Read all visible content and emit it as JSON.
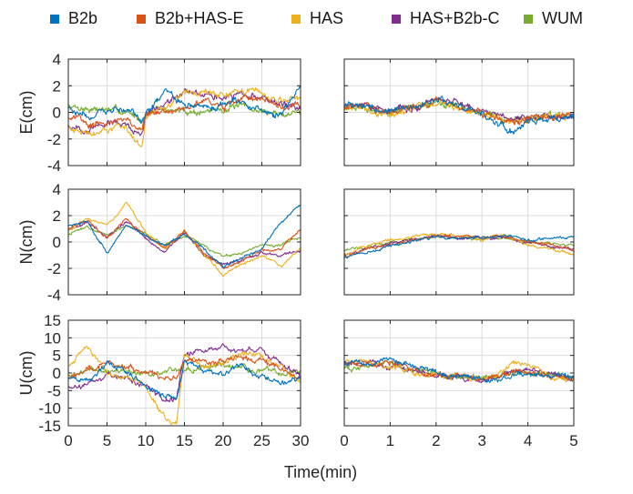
{
  "legend": [
    {
      "name": "B2b",
      "color": "#0072BD"
    },
    {
      "name": "B2b+HAS-E",
      "color": "#D95319"
    },
    {
      "name": "HAS",
      "color": "#EDB120"
    },
    {
      "name": "HAS+B2b-C",
      "color": "#7E2F8E"
    },
    {
      "name": "WUM",
      "color": "#77AC30"
    }
  ],
  "x_axis_label": "Time(min)",
  "chart_data": [
    {
      "type": "line",
      "panel": "E-left",
      "ylabel": "E(cm)",
      "xlim": [
        0,
        30
      ],
      "ylim": [
        -4,
        4
      ],
      "xticks": [
        0,
        5,
        10,
        15,
        20,
        25,
        30
      ],
      "yticks": [
        -4,
        -2,
        0,
        2,
        4
      ],
      "grid": true,
      "x": [
        0,
        2.5,
        5,
        7.5,
        9.5,
        10,
        12.5,
        15,
        17.5,
        20,
        22.5,
        25,
        27.5,
        30
      ],
      "series": [
        {
          "name": "B2b",
          "values": [
            0.3,
            -0.2,
            0.1,
            0.4,
            -0.8,
            -0.2,
            1.8,
            0.5,
            0.3,
            0.6,
            0.9,
            0.2,
            -0.3,
            1.8
          ]
        },
        {
          "name": "B2b+HAS-E",
          "values": [
            -0.4,
            -0.8,
            -0.6,
            -0.5,
            -1.4,
            -0.2,
            0.1,
            0.3,
            0.9,
            0.5,
            1.2,
            0.8,
            0.4,
            0.6
          ]
        },
        {
          "name": "HAS",
          "values": [
            -1.2,
            -1.6,
            -1.1,
            -1.3,
            -2.4,
            -0.4,
            0.3,
            1.4,
            1.6,
            1.3,
            1.7,
            1.4,
            0.8,
            1.0
          ]
        },
        {
          "name": "HAS+B2b-C",
          "values": [
            -1.0,
            -1.3,
            -0.7,
            -0.9,
            -1.6,
            -0.2,
            0.6,
            1.6,
            1.4,
            1.2,
            1.3,
            1.1,
            0.5,
            0.2
          ]
        },
        {
          "name": "WUM",
          "values": [
            0.5,
            0.3,
            0.2,
            0.0,
            -0.5,
            0.0,
            0.2,
            0.1,
            0.0,
            0.3,
            0.4,
            0.1,
            -0.2,
            0.1
          ]
        }
      ]
    },
    {
      "type": "line",
      "panel": "E-right",
      "ylabel": "",
      "xlim": [
        0,
        5
      ],
      "ylim": [
        -4,
        4
      ],
      "xticks": [
        0,
        1,
        2,
        3,
        4,
        5
      ],
      "yticks": [
        -4,
        -2,
        0,
        2,
        4
      ],
      "grid": true,
      "x": [
        0,
        0.5,
        1,
        1.5,
        2,
        2.5,
        3,
        3.5,
        3.7,
        4,
        4.5,
        5
      ],
      "series": [
        {
          "name": "B2b",
          "values": [
            0.5,
            0.4,
            0.0,
            0.5,
            1.0,
            0.5,
            -0.1,
            -1.2,
            -1.6,
            -0.8,
            -0.5,
            -0.4
          ]
        },
        {
          "name": "B2b+HAS-E",
          "values": [
            0.4,
            0.5,
            -0.1,
            0.4,
            0.9,
            0.4,
            0.0,
            -0.6,
            -0.8,
            -0.4,
            -0.3,
            -0.2
          ]
        },
        {
          "name": "HAS",
          "values": [
            0.5,
            0.3,
            -0.2,
            0.3,
            0.8,
            0.4,
            0.0,
            -0.5,
            -0.7,
            -0.5,
            -0.3,
            -0.3
          ]
        },
        {
          "name": "HAS+B2b-C",
          "values": [
            0.4,
            0.5,
            0.0,
            0.4,
            1.0,
            0.5,
            0.1,
            -0.5,
            -0.6,
            -0.4,
            -0.4,
            -0.2
          ]
        },
        {
          "name": "WUM",
          "values": [
            0.3,
            0.2,
            0.0,
            0.3,
            0.7,
            0.3,
            0.0,
            -0.4,
            -0.5,
            -0.3,
            -0.2,
            -0.2
          ]
        }
      ]
    },
    {
      "type": "line",
      "panel": "N-left",
      "ylabel": "N(cm)",
      "xlim": [
        0,
        30
      ],
      "ylim": [
        -4,
        4
      ],
      "xticks": [
        0,
        5,
        10,
        15,
        20,
        25,
        30
      ],
      "yticks": [
        -4,
        -2,
        0,
        2,
        4
      ],
      "grid": true,
      "x": [
        0,
        2.5,
        5,
        7.5,
        10,
        12.5,
        15,
        17.5,
        20,
        22.5,
        25,
        27.5,
        30
      ],
      "series": [
        {
          "name": "B2b",
          "values": [
            1.2,
            1.5,
            -0.8,
            1.2,
            0.5,
            -0.3,
            0.6,
            -0.6,
            -1.8,
            -1.2,
            -0.5,
            1.5,
            2.8
          ]
        },
        {
          "name": "B2b+HAS-E",
          "values": [
            1.0,
            1.6,
            0.2,
            1.8,
            0.4,
            -0.4,
            0.8,
            -0.8,
            -1.9,
            -1.4,
            -0.6,
            -0.5,
            1.0
          ]
        },
        {
          "name": "HAS",
          "values": [
            0.8,
            1.8,
            1.2,
            3.0,
            0.8,
            -0.5,
            0.9,
            -1.0,
            -2.5,
            -1.6,
            -1.0,
            -1.8,
            -0.4
          ]
        },
        {
          "name": "HAS+B2b-C",
          "values": [
            0.9,
            1.4,
            0.3,
            1.7,
            0.2,
            -0.8,
            0.7,
            -0.9,
            -1.7,
            -1.3,
            -0.8,
            -1.0,
            -0.6
          ]
        },
        {
          "name": "WUM",
          "values": [
            0.6,
            1.2,
            0.5,
            1.3,
            0.6,
            -0.2,
            0.5,
            -0.3,
            -1.0,
            -0.9,
            -0.3,
            -0.2,
            0.3
          ]
        }
      ]
    },
    {
      "type": "line",
      "panel": "N-right",
      "ylabel": "",
      "xlim": [
        0,
        5
      ],
      "ylim": [
        -4,
        4
      ],
      "xticks": [
        0,
        1,
        2,
        3,
        4,
        5
      ],
      "yticks": [
        -4,
        -2,
        0,
        2,
        4
      ],
      "grid": true,
      "x": [
        0,
        0.5,
        1,
        1.5,
        2,
        2.5,
        3,
        3.5,
        4,
        4.5,
        5
      ],
      "series": [
        {
          "name": "B2b",
          "values": [
            -1.2,
            -0.8,
            -0.3,
            0.0,
            0.4,
            0.3,
            0.4,
            0.5,
            0.1,
            0.3,
            0.4
          ]
        },
        {
          "name": "B2b+HAS-E",
          "values": [
            -1.1,
            -0.6,
            -0.2,
            0.1,
            0.5,
            0.4,
            0.3,
            0.4,
            0.0,
            -0.2,
            -0.6
          ]
        },
        {
          "name": "HAS",
          "values": [
            -0.9,
            -0.3,
            0.2,
            0.4,
            0.6,
            0.5,
            0.2,
            0.6,
            -0.3,
            -0.5,
            -1.0
          ]
        },
        {
          "name": "HAS+B2b-C",
          "values": [
            -1.0,
            -0.5,
            -0.1,
            0.2,
            0.5,
            0.3,
            0.3,
            0.4,
            0.0,
            -0.3,
            -0.5
          ]
        },
        {
          "name": "WUM",
          "values": [
            -0.7,
            -0.4,
            0.0,
            0.2,
            0.4,
            0.3,
            0.2,
            0.3,
            0.0,
            -0.1,
            -0.3
          ]
        }
      ]
    },
    {
      "type": "line",
      "panel": "U-left",
      "ylabel": "U(cm)",
      "xlim": [
        0,
        30
      ],
      "ylim": [
        -15,
        15
      ],
      "xticks": [
        0,
        5,
        10,
        15,
        20,
        25,
        30
      ],
      "yticks": [
        -15,
        -10,
        -5,
        0,
        5,
        10,
        15
      ],
      "grid": true,
      "x": [
        0,
        2.5,
        5,
        7.5,
        10,
        12.5,
        14,
        15,
        17.5,
        20,
        22.5,
        25,
        27.5,
        30
      ],
      "series": [
        {
          "name": "B2b",
          "values": [
            -2.0,
            -2.5,
            3.0,
            0.5,
            -3.0,
            -6.5,
            -7.0,
            3.5,
            0.5,
            0.0,
            2.0,
            -1.0,
            -2.5,
            -1.0
          ]
        },
        {
          "name": "B2b+HAS-E",
          "values": [
            -1.5,
            1.0,
            2.5,
            1.5,
            0.0,
            -1.0,
            -1.5,
            4.0,
            3.0,
            3.5,
            4.0,
            3.5,
            1.0,
            -1.5
          ]
        },
        {
          "name": "HAS",
          "values": [
            2.0,
            8.0,
            0.5,
            -1.0,
            -3.5,
            -13.0,
            -14.0,
            5.0,
            1.5,
            3.0,
            6.0,
            4.5,
            2.0,
            -3.0
          ]
        },
        {
          "name": "HAS+B2b-C",
          "values": [
            -4.0,
            -3.5,
            -1.0,
            -1.0,
            -3.5,
            -8.0,
            -7.0,
            5.5,
            6.0,
            7.0,
            6.5,
            6.0,
            3.0,
            -1.0
          ]
        },
        {
          "name": "WUM",
          "values": [
            -0.5,
            0.5,
            1.0,
            0.5,
            -0.5,
            0.0,
            0.5,
            1.0,
            1.5,
            2.0,
            1.5,
            1.0,
            0.5,
            0.0
          ]
        }
      ]
    },
    {
      "type": "line",
      "panel": "U-right",
      "ylabel": "",
      "xlim": [
        0,
        5
      ],
      "ylim": [
        -15,
        15
      ],
      "xticks": [
        0,
        1,
        2,
        3,
        4,
        5
      ],
      "yticks": [
        -15,
        -10,
        -5,
        0,
        5,
        10,
        15
      ],
      "grid": true,
      "x": [
        0,
        0.5,
        1,
        1.5,
        2,
        2.5,
        3,
        3.5,
        3.8,
        4,
        4.5,
        5
      ],
      "series": [
        {
          "name": "B2b",
          "values": [
            3.0,
            2.5,
            4.5,
            2.0,
            0.0,
            -1.0,
            -2.0,
            -1.5,
            -0.5,
            -0.5,
            -1.0,
            -1.0
          ]
        },
        {
          "name": "B2b+HAS-E",
          "values": [
            2.5,
            3.0,
            3.0,
            1.5,
            -0.5,
            -1.5,
            -1.5,
            -1.0,
            0.5,
            0.0,
            -1.0,
            -1.5
          ]
        },
        {
          "name": "HAS",
          "values": [
            3.5,
            3.5,
            1.5,
            0.5,
            -0.5,
            -1.0,
            -2.0,
            0.5,
            3.5,
            2.5,
            -1.0,
            -2.0
          ]
        },
        {
          "name": "HAS+B2b-C",
          "values": [
            2.5,
            3.0,
            2.0,
            1.0,
            -0.5,
            -1.0,
            -1.5,
            -0.5,
            0.5,
            0.5,
            -0.5,
            -1.5
          ]
        },
        {
          "name": "WUM",
          "values": [
            2.0,
            2.0,
            2.5,
            1.0,
            0.0,
            -0.5,
            -1.0,
            -0.5,
            0.0,
            0.0,
            -0.5,
            -1.0
          ]
        }
      ]
    }
  ]
}
